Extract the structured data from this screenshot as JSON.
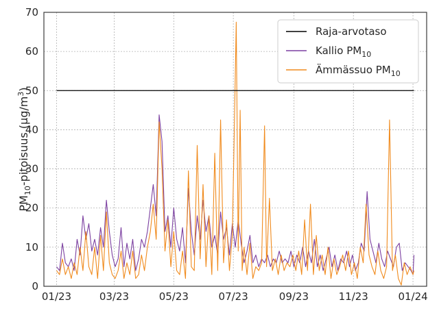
{
  "chart_data": {
    "type": "line",
    "ylabel": {
      "main": "PM",
      "main_sub": "10",
      "rest": "-pitoisuus (µg/m",
      "sup": "3",
      "close": ")"
    },
    "x_ticks": [
      "01/23",
      "03/23",
      "05/23",
      "07/23",
      "09/23",
      "11/23",
      "01/24"
    ],
    "x_tick_days": [
      0,
      59,
      120,
      181,
      243,
      304,
      365
    ],
    "y_ticks": [
      0,
      10,
      20,
      30,
      40,
      50,
      60,
      70
    ],
    "ylim": [
      0,
      70
    ],
    "xlim_days": [
      -13,
      379
    ],
    "grid": true,
    "legend_position": "top-right",
    "limit": {
      "label": "Raja-arvotaso",
      "value": 50,
      "color": "#000000"
    },
    "series": [
      {
        "name_main": "Kallio PM",
        "name_sub": "10",
        "color": "#7b3fa0",
        "points": [
          [
            0,
            5
          ],
          [
            3,
            4
          ],
          [
            6,
            11
          ],
          [
            9,
            6
          ],
          [
            12,
            5
          ],
          [
            15,
            7
          ],
          [
            18,
            4
          ],
          [
            21,
            12
          ],
          [
            24,
            8
          ],
          [
            27,
            18
          ],
          [
            30,
            12
          ],
          [
            33,
            16
          ],
          [
            36,
            9
          ],
          [
            39,
            12
          ],
          [
            42,
            8
          ],
          [
            45,
            15
          ],
          [
            48,
            10
          ],
          [
            51,
            22
          ],
          [
            54,
            14
          ],
          [
            57,
            8
          ],
          [
            60,
            5
          ],
          [
            63,
            7
          ],
          [
            66,
            15
          ],
          [
            69,
            5
          ],
          [
            72,
            11
          ],
          [
            75,
            7
          ],
          [
            78,
            12
          ],
          [
            81,
            4
          ],
          [
            84,
            7
          ],
          [
            87,
            12
          ],
          [
            90,
            10
          ],
          [
            93,
            14
          ],
          [
            96,
            20
          ],
          [
            99,
            26
          ],
          [
            102,
            18
          ],
          [
            105,
            43.8
          ],
          [
            108,
            37
          ],
          [
            111,
            14
          ],
          [
            114,
            18
          ],
          [
            117,
            10
          ],
          [
            120,
            20
          ],
          [
            123,
            12
          ],
          [
            126,
            9
          ],
          [
            129,
            15
          ],
          [
            132,
            6
          ],
          [
            135,
            25
          ],
          [
            138,
            14
          ],
          [
            141,
            8
          ],
          [
            144,
            18
          ],
          [
            147,
            12
          ],
          [
            150,
            22
          ],
          [
            153,
            14
          ],
          [
            156,
            18
          ],
          [
            159,
            10
          ],
          [
            162,
            13
          ],
          [
            165,
            8
          ],
          [
            168,
            19
          ],
          [
            171,
            12
          ],
          [
            174,
            15
          ],
          [
            177,
            8
          ],
          [
            180,
            16
          ],
          [
            183,
            10
          ],
          [
            186,
            17
          ],
          [
            189,
            11
          ],
          [
            192,
            6
          ],
          [
            195,
            9
          ],
          [
            198,
            13
          ],
          [
            201,
            6
          ],
          [
            204,
            8
          ],
          [
            207,
            5
          ],
          [
            210,
            7
          ],
          [
            213,
            6
          ],
          [
            216,
            8
          ],
          [
            219,
            5
          ],
          [
            222,
            7
          ],
          [
            225,
            6
          ],
          [
            228,
            9
          ],
          [
            231,
            6
          ],
          [
            234,
            7
          ],
          [
            237,
            6
          ],
          [
            240,
            9
          ],
          [
            243,
            5
          ],
          [
            246,
            8
          ],
          [
            249,
            6
          ],
          [
            252,
            10
          ],
          [
            255,
            5
          ],
          [
            258,
            9
          ],
          [
            261,
            6
          ],
          [
            264,
            12
          ],
          [
            267,
            5
          ],
          [
            270,
            8
          ],
          [
            273,
            4
          ],
          [
            276,
            7
          ],
          [
            279,
            10
          ],
          [
            282,
            5
          ],
          [
            285,
            8
          ],
          [
            288,
            4
          ],
          [
            291,
            7
          ],
          [
            294,
            6
          ],
          [
            297,
            9
          ],
          [
            300,
            5
          ],
          [
            303,
            8
          ],
          [
            306,
            4
          ],
          [
            309,
            6
          ],
          [
            312,
            11
          ],
          [
            315,
            9
          ],
          [
            318,
            24.2
          ],
          [
            321,
            12
          ],
          [
            324,
            9
          ],
          [
            327,
            6
          ],
          [
            330,
            11
          ],
          [
            333,
            7
          ],
          [
            336,
            5
          ],
          [
            339,
            9
          ],
          [
            342,
            7
          ],
          [
            345,
            5
          ],
          [
            348,
            10
          ],
          [
            351,
            11
          ],
          [
            354,
            4
          ],
          [
            357,
            6
          ],
          [
            360,
            5
          ],
          [
            363,
            4
          ],
          [
            365,
            3
          ],
          [
            366,
            8
          ]
        ]
      },
      {
        "name_main": "Ämmässuo PM",
        "name_sub": "10",
        "color": "#f08a1c",
        "points": [
          [
            0,
            4
          ],
          [
            3,
            3
          ],
          [
            6,
            7
          ],
          [
            9,
            3
          ],
          [
            12,
            5
          ],
          [
            15,
            2
          ],
          [
            18,
            6
          ],
          [
            21,
            3
          ],
          [
            24,
            10
          ],
          [
            27,
            4
          ],
          [
            30,
            14
          ],
          [
            33,
            5
          ],
          [
            36,
            3
          ],
          [
            39,
            10
          ],
          [
            42,
            2
          ],
          [
            45,
            13
          ],
          [
            48,
            4
          ],
          [
            51,
            19
          ],
          [
            54,
            6
          ],
          [
            57,
            3
          ],
          [
            60,
            2
          ],
          [
            63,
            4
          ],
          [
            66,
            9
          ],
          [
            69,
            2
          ],
          [
            72,
            6
          ],
          [
            75,
            3
          ],
          [
            78,
            9
          ],
          [
            81,
            2
          ],
          [
            84,
            3
          ],
          [
            87,
            8
          ],
          [
            90,
            4
          ],
          [
            93,
            10
          ],
          [
            96,
            14
          ],
          [
            99,
            21
          ],
          [
            102,
            12
          ],
          [
            105,
            42
          ],
          [
            108,
            30
          ],
          [
            111,
            9
          ],
          [
            114,
            17
          ],
          [
            117,
            5
          ],
          [
            120,
            14
          ],
          [
            123,
            4
          ],
          [
            126,
            3
          ],
          [
            129,
            9
          ],
          [
            132,
            2
          ],
          [
            135,
            29.5
          ],
          [
            138,
            5
          ],
          [
            141,
            4
          ],
          [
            144,
            36
          ],
          [
            147,
            7
          ],
          [
            150,
            26
          ],
          [
            153,
            5
          ],
          [
            156,
            18
          ],
          [
            159,
            3
          ],
          [
            162,
            34
          ],
          [
            165,
            4
          ],
          [
            168,
            42.5
          ],
          [
            171,
            6
          ],
          [
            174,
            17
          ],
          [
            177,
            4
          ],
          [
            180,
            13
          ],
          [
            182,
            40
          ],
          [
            184,
            67.5
          ],
          [
            186,
            9
          ],
          [
            188,
            45
          ],
          [
            190,
            4
          ],
          [
            192,
            10
          ],
          [
            195,
            3
          ],
          [
            198,
            11
          ],
          [
            201,
            2
          ],
          [
            204,
            5
          ],
          [
            207,
            4
          ],
          [
            210,
            6
          ],
          [
            213,
            41
          ],
          [
            215,
            5
          ],
          [
            218,
            22.5
          ],
          [
            221,
            4
          ],
          [
            224,
            7
          ],
          [
            227,
            3
          ],
          [
            230,
            8
          ],
          [
            233,
            4
          ],
          [
            236,
            6
          ],
          [
            239,
            5
          ],
          [
            242,
            8
          ],
          [
            245,
            4
          ],
          [
            248,
            9
          ],
          [
            251,
            3
          ],
          [
            254,
            17
          ],
          [
            257,
            4
          ],
          [
            260,
            21
          ],
          [
            263,
            3
          ],
          [
            266,
            13
          ],
          [
            269,
            4
          ],
          [
            272,
            8
          ],
          [
            275,
            3
          ],
          [
            278,
            10
          ],
          [
            281,
            2
          ],
          [
            284,
            7
          ],
          [
            287,
            3
          ],
          [
            290,
            5
          ],
          [
            293,
            8
          ],
          [
            296,
            4
          ],
          [
            299,
            9
          ],
          [
            302,
            3
          ],
          [
            305,
            6
          ],
          [
            308,
            2
          ],
          [
            311,
            10
          ],
          [
            314,
            6
          ],
          [
            317,
            21
          ],
          [
            320,
            8
          ],
          [
            323,
            5
          ],
          [
            326,
            3
          ],
          [
            329,
            9
          ],
          [
            332,
            4
          ],
          [
            335,
            2
          ],
          [
            338,
            5
          ],
          [
            341,
            42.5
          ],
          [
            344,
            4
          ],
          [
            347,
            8
          ],
          [
            350,
            2
          ],
          [
            353,
            0.3
          ],
          [
            356,
            6
          ],
          [
            359,
            3
          ],
          [
            362,
            5
          ],
          [
            365,
            3
          ],
          [
            366,
            4
          ]
        ]
      }
    ]
  }
}
